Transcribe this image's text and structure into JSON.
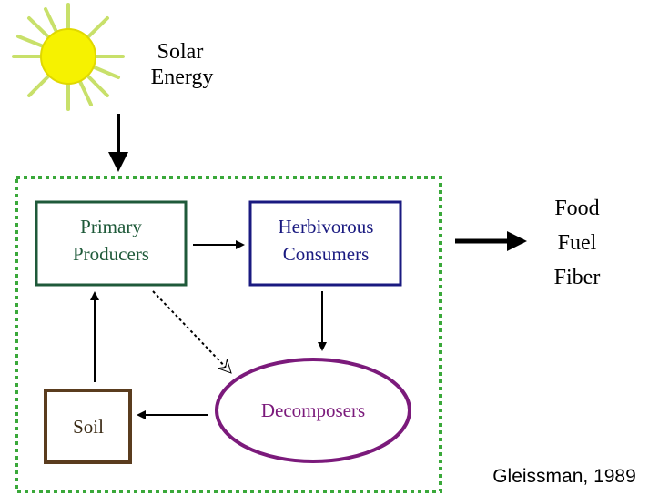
{
  "sun": {
    "label_line1": "Solar",
    "label_line2": "Energy"
  },
  "nodes": [
    {
      "label_line1": "Primary",
      "label_line2": "Producers"
    },
    {
      "label_line1": "Herbivorous",
      "label_line2": "Consumers"
    },
    {
      "label": "Decomposers"
    },
    {
      "label": "Soil"
    }
  ],
  "outputs": [
    "Food",
    "Fuel",
    "Fiber"
  ],
  "citation": "Gleissman, 1989"
}
